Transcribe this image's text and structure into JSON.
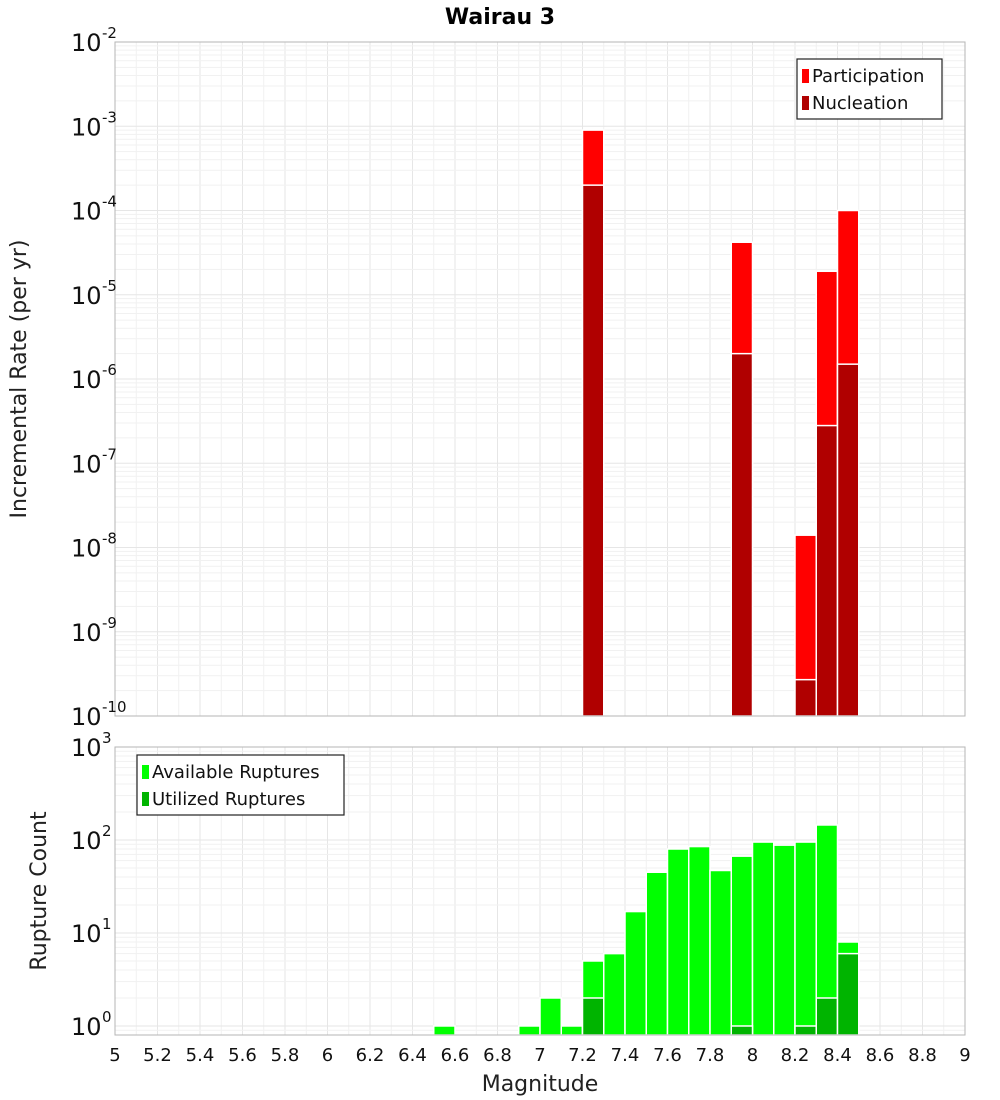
{
  "chart_data": [
    {
      "type": "bar",
      "title": "Wairau 3",
      "xlabel": "",
      "ylabel": "Incremental Rate (per yr)",
      "y_scale": "log",
      "ylim": [
        1e-10,
        0.01
      ],
      "xlim": [
        5,
        9
      ],
      "bin_width": 0.1,
      "grid": true,
      "overlay": true,
      "legend": {
        "placement": "top-right",
        "entries": [
          "Participation",
          "Nucleation"
        ]
      },
      "series": [
        {
          "name": "Participation",
          "color": "#ff0000",
          "x": [
            7.25,
            7.95,
            8.25,
            8.35,
            8.45
          ],
          "values": [
            0.0009,
            4.2e-05,
            1.4e-08,
            1.9e-05,
            0.0001
          ]
        },
        {
          "name": "Nucleation",
          "color": "#b00000",
          "x": [
            7.25,
            7.95,
            8.25,
            8.35,
            8.45
          ],
          "values": [
            0.0002,
            2e-06,
            2.7e-10,
            2.8e-07,
            1.5e-06
          ]
        }
      ]
    },
    {
      "type": "bar",
      "xlabel": "Magnitude",
      "ylabel": "Rupture Count",
      "y_scale": "log",
      "ylim": [
        0.8,
        1000
      ],
      "xlim": [
        5,
        9
      ],
      "bin_width": 0.1,
      "grid": true,
      "overlay": true,
      "legend": {
        "placement": "top-left",
        "entries": [
          "Available Ruptures",
          "Utilized Ruptures"
        ]
      },
      "xticks": [
        "5",
        "5.2",
        "5.4",
        "5.6",
        "5.8",
        "6",
        "6.2",
        "6.4",
        "6.6",
        "6.8",
        "7",
        "7.2",
        "7.4",
        "7.6",
        "7.8",
        "8",
        "8.2",
        "8.4",
        "8.6",
        "8.8",
        "9"
      ],
      "series": [
        {
          "name": "Available Ruptures",
          "color": "#00ff00",
          "x": [
            6.55,
            6.95,
            7.05,
            7.15,
            7.25,
            7.35,
            7.45,
            7.55,
            7.65,
            7.75,
            7.85,
            7.95,
            8.05,
            8.15,
            8.25,
            8.35,
            8.45
          ],
          "values": [
            1,
            1,
            2,
            1,
            5,
            6,
            17,
            45,
            80,
            85,
            47,
            67,
            95,
            88,
            95,
            145,
            8
          ]
        },
        {
          "name": "Utilized Ruptures",
          "color": "#00b400",
          "x": [
            7.25,
            7.95,
            8.25,
            8.35,
            8.45
          ],
          "values": [
            2,
            1,
            1,
            2,
            6
          ]
        }
      ]
    }
  ]
}
